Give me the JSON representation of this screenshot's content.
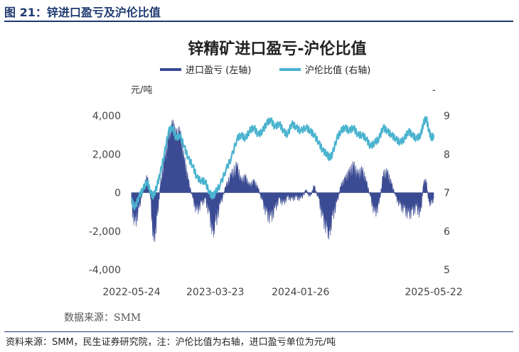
{
  "figure": {
    "title": "图 21：锌进口盈亏及沪伦比值",
    "source_note": "资料来源：SMM，民生证券研究院，注：沪伦比值为右轴，进口盈亏单位为元/吨"
  },
  "chart_data": {
    "type": "area+line",
    "title": "锌精矿进口盈亏-沪伦比值",
    "legend_position": "top",
    "left_axis": {
      "unit": "元/吨",
      "ylim": [
        -4000,
        4000
      ],
      "ticks": [
        "4,000",
        "2,000",
        "0",
        "-2,000",
        "-4,000"
      ]
    },
    "right_axis": {
      "unit": "-",
      "ylim": [
        5,
        9
      ],
      "ticks": [
        "9",
        "8",
        "7",
        "6",
        "5"
      ]
    },
    "x_ticks": [
      "2022-05-24",
      "2023-03-23",
      "2024-01-26",
      "2025-05-22"
    ],
    "x_range": [
      "2022-05-24",
      "2025-05-22"
    ],
    "grid": false,
    "source": "数据来源：SMM",
    "series": [
      {
        "name": "进口盈亏 (左轴)",
        "axis": "left",
        "type": "area",
        "color": "#3b4b93",
        "points": [
          [
            "2022-05-24",
            -600
          ],
          [
            "2022-06-05",
            -1500
          ],
          [
            "2022-06-20",
            -800
          ],
          [
            "2022-07-05",
            200
          ],
          [
            "2022-07-20",
            700
          ],
          [
            "2022-08-01",
            -300
          ],
          [
            "2022-08-12",
            -2500
          ],
          [
            "2022-08-25",
            -1200
          ],
          [
            "2022-09-05",
            300
          ],
          [
            "2022-09-20",
            1500
          ],
          [
            "2022-10-05",
            2600
          ],
          [
            "2022-10-20",
            3400
          ],
          [
            "2022-11-01",
            2800
          ],
          [
            "2022-11-15",
            3000
          ],
          [
            "2022-12-01",
            1500
          ],
          [
            "2022-12-15",
            600
          ],
          [
            "2023-01-01",
            -300
          ],
          [
            "2023-01-15",
            -900
          ],
          [
            "2023-02-01",
            -500
          ],
          [
            "2023-02-15",
            -300
          ],
          [
            "2023-03-01",
            -1000
          ],
          [
            "2023-03-15",
            -2000
          ],
          [
            "2023-03-23",
            -1500
          ],
          [
            "2023-04-10",
            -600
          ],
          [
            "2023-05-01",
            300
          ],
          [
            "2023-05-20",
            800
          ],
          [
            "2023-06-10",
            1200
          ],
          [
            "2023-06-25",
            500
          ],
          [
            "2023-07-10",
            700
          ],
          [
            "2023-07-25",
            300
          ],
          [
            "2023-08-10",
            500
          ],
          [
            "2023-08-25",
            200
          ],
          [
            "2023-09-10",
            -400
          ],
          [
            "2023-09-25",
            -1000
          ],
          [
            "2023-10-10",
            -1200
          ],
          [
            "2023-10-25",
            -800
          ],
          [
            "2023-11-10",
            -300
          ],
          [
            "2023-11-25",
            -500
          ],
          [
            "2023-12-10",
            -200
          ],
          [
            "2023-12-25",
            -300
          ],
          [
            "2024-01-10",
            -200
          ],
          [
            "2024-01-26",
            -300
          ],
          [
            "2024-02-15",
            100
          ],
          [
            "2024-03-01",
            -200
          ],
          [
            "2024-03-15",
            300
          ],
          [
            "2024-04-01",
            -300
          ],
          [
            "2024-04-15",
            -1200
          ],
          [
            "2024-05-01",
            -1800
          ],
          [
            "2024-05-10",
            -2000
          ],
          [
            "2024-05-20",
            -1200
          ],
          [
            "2024-06-05",
            -500
          ],
          [
            "2024-06-20",
            300
          ],
          [
            "2024-07-05",
            600
          ],
          [
            "2024-07-20",
            900
          ],
          [
            "2024-08-05",
            1200
          ],
          [
            "2024-08-20",
            800
          ],
          [
            "2024-09-05",
            1000
          ],
          [
            "2024-09-20",
            500
          ],
          [
            "2024-10-05",
            -200
          ],
          [
            "2024-10-20",
            -1000
          ],
          [
            "2024-11-05",
            -600
          ],
          [
            "2024-11-20",
            800
          ],
          [
            "2024-12-05",
            900
          ],
          [
            "2024-12-20",
            400
          ],
          [
            "2025-01-05",
            -200
          ],
          [
            "2025-01-20",
            -600
          ],
          [
            "2025-02-05",
            -800
          ],
          [
            "2025-02-20",
            -1000
          ],
          [
            "2025-03-05",
            -900
          ],
          [
            "2025-03-20",
            -700
          ],
          [
            "2025-04-05",
            -1000
          ],
          [
            "2025-04-15",
            400
          ],
          [
            "2025-04-25",
            500
          ],
          [
            "2025-05-05",
            -500
          ],
          [
            "2025-05-15",
            -400
          ],
          [
            "2025-05-22",
            -300
          ]
        ]
      },
      {
        "name": "沪伦比值 (右轴)",
        "axis": "right",
        "type": "line",
        "color": "#4ab3cf",
        "points": [
          [
            "2022-05-24",
            6.8
          ],
          [
            "2022-06-05",
            6.6
          ],
          [
            "2022-06-20",
            6.9
          ],
          [
            "2022-07-05",
            7.1
          ],
          [
            "2022-07-20",
            7.3
          ],
          [
            "2022-08-01",
            7.0
          ],
          [
            "2022-08-12",
            6.9
          ],
          [
            "2022-08-25",
            7.2
          ],
          [
            "2022-09-05",
            7.5
          ],
          [
            "2022-09-20",
            8.0
          ],
          [
            "2022-10-05",
            8.6
          ],
          [
            "2022-10-20",
            8.7
          ],
          [
            "2022-11-01",
            8.4
          ],
          [
            "2022-11-15",
            8.5
          ],
          [
            "2022-12-01",
            8.2
          ],
          [
            "2022-12-15",
            7.9
          ],
          [
            "2023-01-01",
            7.7
          ],
          [
            "2023-01-15",
            7.4
          ],
          [
            "2023-02-01",
            7.3
          ],
          [
            "2023-02-15",
            7.3
          ],
          [
            "2023-03-01",
            7.0
          ],
          [
            "2023-03-15",
            6.9
          ],
          [
            "2023-03-23",
            7.0
          ],
          [
            "2023-04-10",
            7.2
          ],
          [
            "2023-05-01",
            7.6
          ],
          [
            "2023-05-20",
            7.9
          ],
          [
            "2023-06-10",
            8.4
          ],
          [
            "2023-06-25",
            8.5
          ],
          [
            "2023-07-10",
            8.4
          ],
          [
            "2023-07-25",
            8.6
          ],
          [
            "2023-08-10",
            8.7
          ],
          [
            "2023-08-25",
            8.5
          ],
          [
            "2023-09-10",
            8.6
          ],
          [
            "2023-09-25",
            8.8
          ],
          [
            "2023-10-10",
            8.9
          ],
          [
            "2023-10-25",
            8.7
          ],
          [
            "2023-11-10",
            8.8
          ],
          [
            "2023-11-25",
            8.6
          ],
          [
            "2023-12-10",
            8.5
          ],
          [
            "2023-12-25",
            8.8
          ],
          [
            "2024-01-10",
            8.7
          ],
          [
            "2024-01-26",
            8.6
          ],
          [
            "2024-02-15",
            8.7
          ],
          [
            "2024-03-01",
            8.6
          ],
          [
            "2024-03-15",
            8.5
          ],
          [
            "2024-04-01",
            8.3
          ],
          [
            "2024-04-15",
            8.1
          ],
          [
            "2024-05-01",
            8.0
          ],
          [
            "2024-05-10",
            7.9
          ],
          [
            "2024-05-20",
            8.0
          ],
          [
            "2024-06-05",
            8.4
          ],
          [
            "2024-06-20",
            8.6
          ],
          [
            "2024-07-05",
            8.7
          ],
          [
            "2024-07-20",
            8.6
          ],
          [
            "2024-08-05",
            8.7
          ],
          [
            "2024-08-20",
            8.5
          ],
          [
            "2024-09-05",
            8.5
          ],
          [
            "2024-09-20",
            8.4
          ],
          [
            "2024-10-05",
            8.2
          ],
          [
            "2024-10-20",
            8.3
          ],
          [
            "2024-11-05",
            8.4
          ],
          [
            "2024-11-20",
            8.7
          ],
          [
            "2024-12-05",
            8.6
          ],
          [
            "2024-12-20",
            8.5
          ],
          [
            "2025-01-05",
            8.4
          ],
          [
            "2025-01-20",
            8.3
          ],
          [
            "2025-02-05",
            8.4
          ],
          [
            "2025-02-20",
            8.6
          ],
          [
            "2025-03-05",
            8.5
          ],
          [
            "2025-03-20",
            8.4
          ],
          [
            "2025-04-05",
            8.5
          ],
          [
            "2025-04-15",
            8.8
          ],
          [
            "2025-04-25",
            8.95
          ],
          [
            "2025-05-05",
            8.6
          ],
          [
            "2025-05-15",
            8.4
          ],
          [
            "2025-05-22",
            8.5
          ]
        ]
      }
    ]
  }
}
